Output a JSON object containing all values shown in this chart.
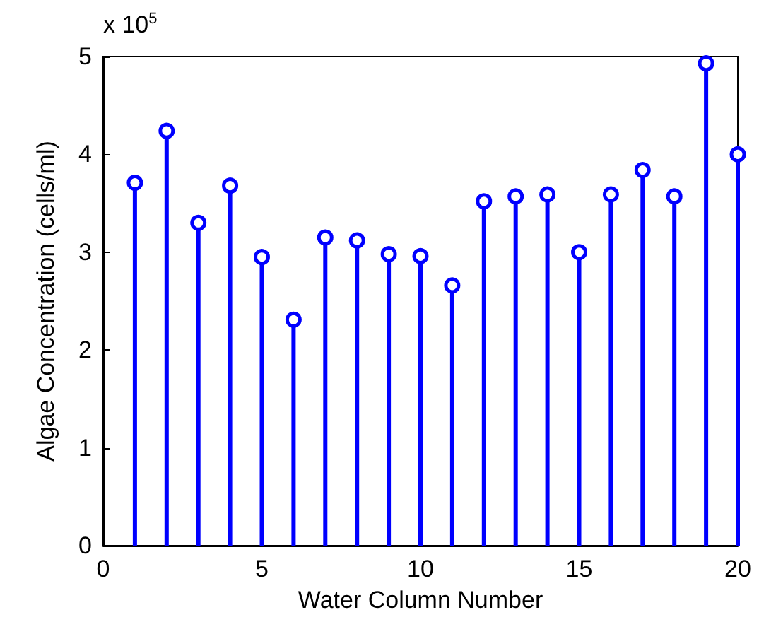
{
  "chart_data": {
    "type": "lollipop",
    "xlabel": "Water Column Number",
    "ylabel": "Algae Concentration (cells/ml)",
    "annotations": [
      "x 10$^{5}$"
    ],
    "x": [
      1,
      2,
      3,
      4,
      5,
      6,
      7,
      8,
      9,
      10,
      11,
      12,
      13,
      14,
      15,
      16,
      17,
      18,
      19,
      20
    ],
    "series": [
      {
        "color": "#0000ff",
        "values": [
          3.71,
          4.24,
          3.3,
          3.68,
          2.95,
          2.31,
          3.15,
          3.12,
          2.98,
          2.96,
          2.66,
          3.52,
          3.57,
          3.59,
          3.0,
          3.59,
          3.84,
          3.57,
          4.93,
          4.0
        ]
      }
    ],
    "xlim": [
      0,
      20
    ],
    "xticks": [
      0,
      5,
      10,
      15,
      20
    ],
    "ylim": [
      0,
      5
    ],
    "yticks": [
      0,
      1,
      2,
      3,
      4,
      5
    ],
    "grid": false,
    "marker": "circle"
  }
}
